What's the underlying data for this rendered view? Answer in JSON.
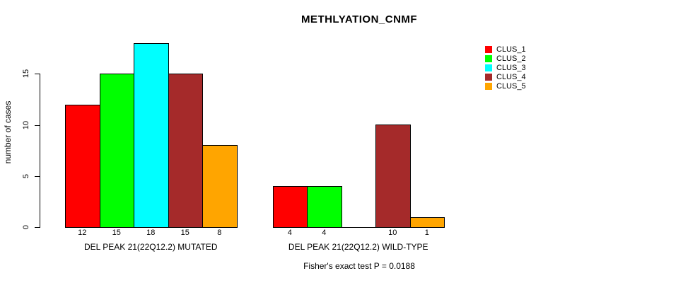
{
  "title": "METHLYATION_CNMF",
  "caption": "Fisher's exact test P = 0.0188",
  "y_axis": {
    "label": "number of cases",
    "ticks": [
      0,
      5,
      10,
      15
    ]
  },
  "legend_items": [
    "CLUS_1",
    "CLUS_2",
    "CLUS_3",
    "CLUS_4",
    "CLUS_5"
  ],
  "colors": {
    "clus_1": "#FF0000",
    "clus_2": "#00FF00",
    "clus_3": "#00FFFF",
    "clus_4": "#A52A2A",
    "clus_5": "#FFA500"
  },
  "chart_data": {
    "type": "bar",
    "title": "METHLYATION_CNMF",
    "xlabel": "",
    "ylabel": "number of cases",
    "ylim": [
      0,
      18
    ],
    "y_ticks": [
      0,
      5,
      10,
      15
    ],
    "grid": false,
    "legend_position": "right",
    "bar_value_labels": true,
    "categories": [
      "DEL PEAK 21(22Q12.2) MUTATED",
      "DEL PEAK 21(22Q12.2) WILD-TYPE"
    ],
    "series": [
      {
        "name": "CLUS_1",
        "color": "#FF0000",
        "values": [
          12,
          4
        ]
      },
      {
        "name": "CLUS_2",
        "color": "#00FF00",
        "values": [
          15,
          4
        ]
      },
      {
        "name": "CLUS_3",
        "color": "#00FFFF",
        "values": [
          18,
          0
        ]
      },
      {
        "name": "CLUS_4",
        "color": "#A52A2A",
        "values": [
          15,
          10
        ]
      },
      {
        "name": "CLUS_5",
        "color": "#FFA500",
        "values": [
          8,
          1
        ]
      }
    ],
    "annotation": "Fisher's exact test P = 0.0188"
  }
}
